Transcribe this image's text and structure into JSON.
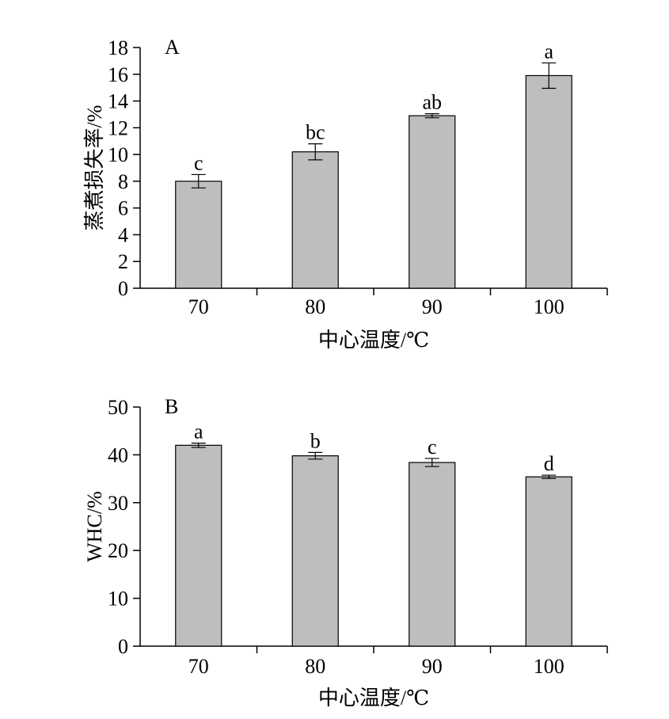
{
  "chart_data": [
    {
      "type": "bar",
      "panel_label": "A",
      "categories": [
        "70",
        "80",
        "90",
        "100"
      ],
      "values": [
        8.0,
        10.2,
        12.9,
        15.9
      ],
      "errors": [
        0.5,
        0.6,
        0.15,
        0.95
      ],
      "significance": [
        "c",
        "bc",
        "ab",
        "a"
      ],
      "xlabel": "中心温度/℃",
      "ylabel": "蒸煮损失率/%",
      "ylim": [
        0,
        18
      ],
      "yticks": [
        "0",
        "2",
        "4",
        "6",
        "8",
        "10",
        "12",
        "14",
        "16",
        "18"
      ],
      "bar_color": "#bebebe",
      "grid": false
    },
    {
      "type": "bar",
      "panel_label": "B",
      "categories": [
        "70",
        "80",
        "90",
        "100"
      ],
      "values": [
        42.0,
        39.8,
        38.4,
        35.4
      ],
      "errors": [
        0.45,
        0.7,
        0.85,
        0.35
      ],
      "significance": [
        "a",
        "b",
        "c",
        "d"
      ],
      "xlabel": "中心温度/℃",
      "ylabel": "WHC/%",
      "ylim": [
        0,
        50
      ],
      "yticks": [
        "0",
        "10",
        "20",
        "30",
        "40",
        "50"
      ],
      "bar_color": "#bebebe",
      "grid": false
    }
  ]
}
